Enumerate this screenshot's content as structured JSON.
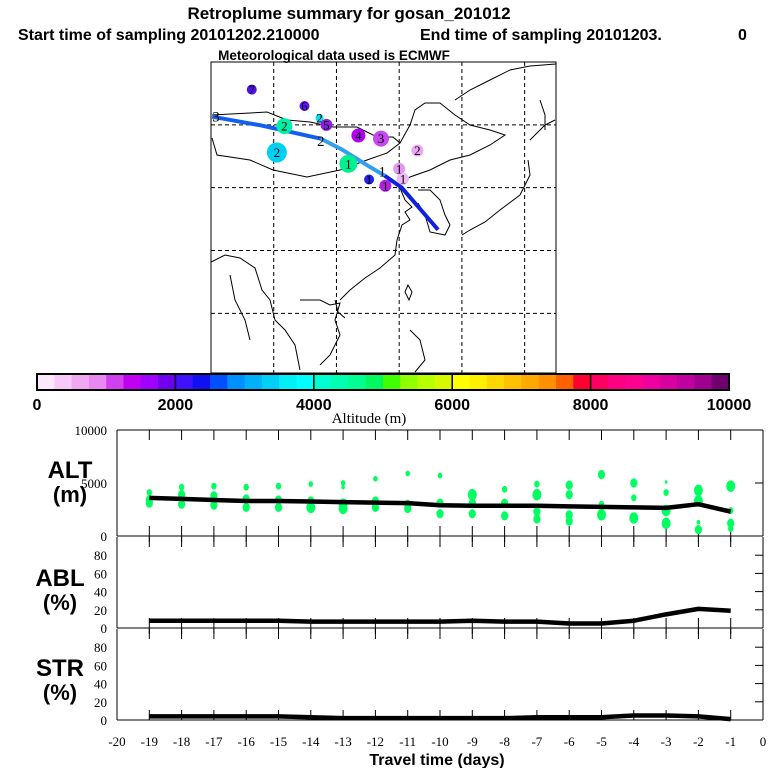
{
  "title": {
    "line1": "Retroplume summary for gosan_201012",
    "start": "Start time of sampling 20101202.210000",
    "end": "End time of sampling 20101203.",
    "end_suffix": "0",
    "line3": "Meteorological data used is ECMWF"
  },
  "colorbar": {
    "label": "Altitude (m)",
    "ticks": [
      "0",
      "2000",
      "4000",
      "6000",
      "8000",
      "10000"
    ],
    "range": [
      0,
      10000
    ],
    "colors": [
      "#fce8fc",
      "#f8c8f8",
      "#f0a8f0",
      "#e888f0",
      "#d040f0",
      "#c000f0",
      "#a000ff",
      "#7000f0",
      "#4010ff",
      "#1010f0",
      "#0050ff",
      "#0090ff",
      "#00b0f8",
      "#00d0f8",
      "#00f0f8",
      "#00ffff",
      "#00ffd0",
      "#00ffb0",
      "#00ff90",
      "#00f860",
      "#40ff00",
      "#90ff00",
      "#b8ff00",
      "#d8f800",
      "#ffff00",
      "#fff000",
      "#ffd800",
      "#ffc000",
      "#ffa800",
      "#ff9000",
      "#ff6000",
      "#ff0030",
      "#ff0060",
      "#ff0080",
      "#ff0090",
      "#f000a0",
      "#d800a0",
      "#c000a0",
      "#a00090",
      "#700070"
    ]
  },
  "map": {
    "lon_range": [
      90,
      145
    ],
    "lat_range": [
      10.5,
      60
    ],
    "grid_lons": [
      100,
      110,
      120,
      130,
      140
    ],
    "grid_lats": [
      20,
      30,
      40,
      50
    ],
    "trajectory": [
      {
        "color": "#1060f0",
        "points": [
          [
            90.2,
            51.3
          ],
          [
            98,
            49.9
          ],
          [
            107.5,
            47.8
          ]
        ]
      },
      {
        "color": "#30a0f0",
        "points": [
          [
            107.5,
            47.8
          ],
          [
            111,
            46
          ],
          [
            115,
            43.5
          ],
          [
            117.7,
            41.9
          ]
        ]
      },
      {
        "color": "#1020e0",
        "points": [
          [
            117.7,
            41.9
          ],
          [
            120.4,
            40
          ],
          [
            126.2,
            33.3
          ]
        ]
      }
    ],
    "trajectory_labels": [
      {
        "text": "3",
        "lon": 90.8,
        "lat": 51.3
      },
      {
        "text": "2",
        "lon": 107.5,
        "lat": 47.4
      },
      {
        "text": "1",
        "lon": 117.3,
        "lat": 42.6
      }
    ],
    "clusters": [
      {
        "label": "7",
        "lon": 96.5,
        "lat": 55.6,
        "color": "#5010e8",
        "size": 5
      },
      {
        "label": "6",
        "lon": 104.9,
        "lat": 53.0,
        "color": "#6010f8",
        "size": 5
      },
      {
        "label": "2",
        "lon": 107.3,
        "lat": 51.1,
        "color": "#00e0f0",
        "size": 4
      },
      {
        "label": "5",
        "lon": 108.4,
        "lat": 50.0,
        "color": "#8a20e0",
        "size": 6
      },
      {
        "label": "2",
        "lon": 101.7,
        "lat": 49.8,
        "color": "#00f0a8",
        "size": 8
      },
      {
        "label": "4",
        "lon": 113.5,
        "lat": 48.3,
        "color": "#b000f0",
        "size": 7
      },
      {
        "label": "3",
        "lon": 117.1,
        "lat": 47.8,
        "color": "#c848f0",
        "size": 8
      },
      {
        "label": "2",
        "lon": 100.5,
        "lat": 45.6,
        "color": "#00d0f0",
        "size": 10
      },
      {
        "label": "2",
        "lon": 122.9,
        "lat": 45.9,
        "color": "#eaa8f4",
        "size": 6
      },
      {
        "label": "1",
        "lon": 111.9,
        "lat": 43.8,
        "color": "#00f090",
        "size": 9
      },
      {
        "label": "1",
        "lon": 120.0,
        "lat": 43.0,
        "color": "#e098f0",
        "size": 6
      },
      {
        "label": "1",
        "lon": 120.6,
        "lat": 41.4,
        "color": "#f0b8f4",
        "size": 6
      },
      {
        "label": "1",
        "lon": 115.2,
        "lat": 41.3,
        "color": "#2020f0",
        "size": 5
      },
      {
        "label": "1",
        "lon": 117.8,
        "lat": 40.3,
        "color": "#b020e0",
        "size": 6
      }
    ]
  },
  "chart_data": [
    {
      "type": "line",
      "panel_label": "ALT",
      "panel_unit": "(m)",
      "x": [
        -19,
        -18,
        -17,
        -16,
        -15,
        -14,
        -13,
        -12,
        -11,
        -10,
        -9,
        -8,
        -7,
        -6,
        -5,
        -4,
        -3,
        -2,
        -1
      ],
      "values": [
        3600,
        3500,
        3400,
        3300,
        3300,
        3250,
        3200,
        3150,
        3100,
        2900,
        2850,
        2850,
        2850,
        2800,
        2750,
        2700,
        2650,
        3000,
        2300
      ],
      "ylim": [
        0,
        10000
      ],
      "yticks": [
        "0",
        "5000",
        "10000"
      ],
      "scatter_color": "#00ff60",
      "scatter": [
        {
          "x": -19,
          "pts": [
            [
              4100,
              3
            ],
            [
              3400,
              4
            ],
            [
              3100,
              4
            ]
          ]
        },
        {
          "x": -18,
          "pts": [
            [
              4600,
              3
            ],
            [
              3900,
              4
            ],
            [
              3000,
              4
            ]
          ]
        },
        {
          "x": -17,
          "pts": [
            [
              4700,
              3
            ],
            [
              3800,
              4
            ],
            [
              2900,
              4
            ]
          ]
        },
        {
          "x": -16,
          "pts": [
            [
              4600,
              3
            ],
            [
              3500,
              4
            ],
            [
              2700,
              4
            ]
          ]
        },
        {
          "x": -15,
          "pts": [
            [
              4700,
              3
            ],
            [
              3400,
              4
            ],
            [
              2700,
              4
            ]
          ]
        },
        {
          "x": -14,
          "pts": [
            [
              4900,
              2.5
            ],
            [
              3300,
              4
            ],
            [
              2700,
              5
            ]
          ]
        },
        {
          "x": -13,
          "pts": [
            [
              5000,
              2.5
            ],
            [
              4600,
              2
            ],
            [
              3000,
              5
            ],
            [
              2600,
              5
            ]
          ]
        },
        {
          "x": -12,
          "pts": [
            [
              5400,
              2.5
            ],
            [
              3300,
              4
            ],
            [
              2700,
              4
            ]
          ]
        },
        {
          "x": -11,
          "pts": [
            [
              5900,
              2.5
            ],
            [
              3000,
              4
            ],
            [
              2600,
              4
            ]
          ]
        },
        {
          "x": -10,
          "pts": [
            [
              5700,
              2.5
            ],
            [
              3100,
              4
            ],
            [
              2100,
              4
            ]
          ]
        },
        {
          "x": -9,
          "pts": [
            [
              3900,
              5
            ],
            [
              3100,
              4
            ],
            [
              2100,
              4
            ]
          ]
        },
        {
          "x": -8,
          "pts": [
            [
              4400,
              3
            ],
            [
              3100,
              4
            ],
            [
              1900,
              4
            ]
          ]
        },
        {
          "x": -7,
          "pts": [
            [
              4900,
              3
            ],
            [
              3900,
              5
            ],
            [
              2300,
              4
            ],
            [
              1600,
              4
            ]
          ]
        },
        {
          "x": -6,
          "pts": [
            [
              4800,
              4
            ],
            [
              3900,
              4
            ],
            [
              2000,
              4
            ],
            [
              1400,
              4
            ]
          ]
        },
        {
          "x": -5,
          "pts": [
            [
              5800,
              4
            ],
            [
              3000,
              3
            ],
            [
              2000,
              5
            ]
          ]
        },
        {
          "x": -4,
          "pts": [
            [
              5000,
              4
            ],
            [
              3600,
              3
            ],
            [
              1700,
              5
            ]
          ]
        },
        {
          "x": -3,
          "pts": [
            [
              5100,
              1.5
            ],
            [
              4100,
              3
            ],
            [
              2400,
              5
            ],
            [
              1200,
              5
            ]
          ]
        },
        {
          "x": -2,
          "pts": [
            [
              4300,
              5
            ],
            [
              3300,
              5
            ],
            [
              1300,
              2
            ],
            [
              600,
              4
            ]
          ]
        },
        {
          "x": -1,
          "pts": [
            [
              4700,
              5
            ],
            [
              2400,
              3
            ],
            [
              1200,
              4
            ],
            [
              700,
              3
            ]
          ]
        }
      ]
    },
    {
      "type": "line",
      "panel_label": "ABL",
      "panel_unit": "(%)",
      "x": [
        -19,
        -18,
        -17,
        -16,
        -15,
        -14,
        -13,
        -12,
        -11,
        -10,
        -9,
        -8,
        -7,
        -6,
        -5,
        -4,
        -3,
        -2,
        -1
      ],
      "values": [
        8,
        8,
        8,
        8,
        8,
        7,
        7,
        7,
        7,
        7,
        8,
        7,
        7,
        5,
        5,
        8,
        15,
        21,
        19
      ],
      "ylim": [
        0,
        100
      ],
      "yticks": [
        "0",
        "20",
        "40",
        "60",
        "80"
      ]
    },
    {
      "type": "line",
      "panel_label": "STR",
      "panel_unit": "(%)",
      "x": [
        -19,
        -18,
        -17,
        -16,
        -15,
        -14,
        -13,
        -12,
        -11,
        -10,
        -9,
        -8,
        -7,
        -6,
        -5,
        -4,
        -3,
        -2,
        -1
      ],
      "values": [
        4,
        4,
        4,
        4,
        4,
        3,
        2,
        2,
        2,
        2,
        2,
        2,
        3,
        3,
        3,
        5,
        5,
        4,
        1
      ],
      "ylim": [
        0,
        100
      ],
      "yticks": [
        "0",
        "20",
        "40",
        "60",
        "80"
      ]
    }
  ],
  "xaxis": {
    "label": "Travel time (days)",
    "xlim": [
      -20,
      0
    ],
    "ticks": [
      "-20",
      "-19",
      "-18",
      "-17",
      "-16",
      "-15",
      "-14",
      "-13",
      "-12",
      "-11",
      "-10",
      "-9",
      "-8",
      "-7",
      "-6",
      "-5",
      "-4",
      "-3",
      "-2",
      "-1",
      "0"
    ]
  }
}
